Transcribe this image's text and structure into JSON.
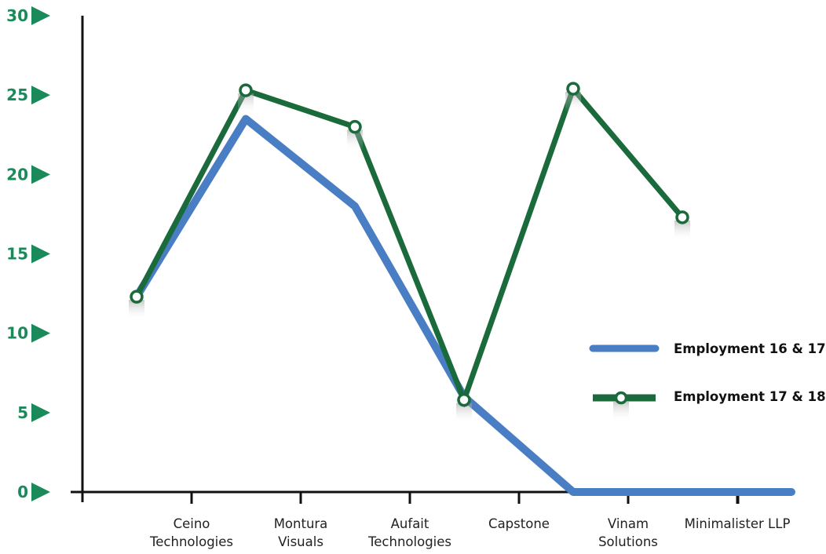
{
  "chart_data": {
    "type": "line",
    "title": "",
    "xlabel": "",
    "ylabel": "",
    "categories": [
      "",
      "Ceino Technologies",
      "Montura Visuals",
      "Aufait Technologies",
      "Capstone",
      "Vinam Solutions",
      "Minimalister LLP"
    ],
    "yticks": [
      "0",
      "5",
      "10",
      "15",
      "20",
      "25",
      "30"
    ],
    "ylim": [
      0,
      30
    ],
    "grid": false,
    "legend_position": "right",
    "series": [
      {
        "name": "Employment 16 & 17",
        "color": "#4a7ec4",
        "marker": "none",
        "x": [
          0,
          1,
          2,
          3,
          4,
          5,
          6
        ],
        "values": [
          12.3,
          23.5,
          18,
          6,
          0,
          0,
          0
        ]
      },
      {
        "name": "Employment 17 & 18",
        "color": "#1a6a3c",
        "marker": "circle",
        "x": [
          0,
          1,
          2,
          3,
          4,
          5
        ],
        "values": [
          12.3,
          25.3,
          23,
          5.8,
          25.4,
          17.3
        ]
      }
    ],
    "tick_marker_color": "#1b8a5a"
  }
}
